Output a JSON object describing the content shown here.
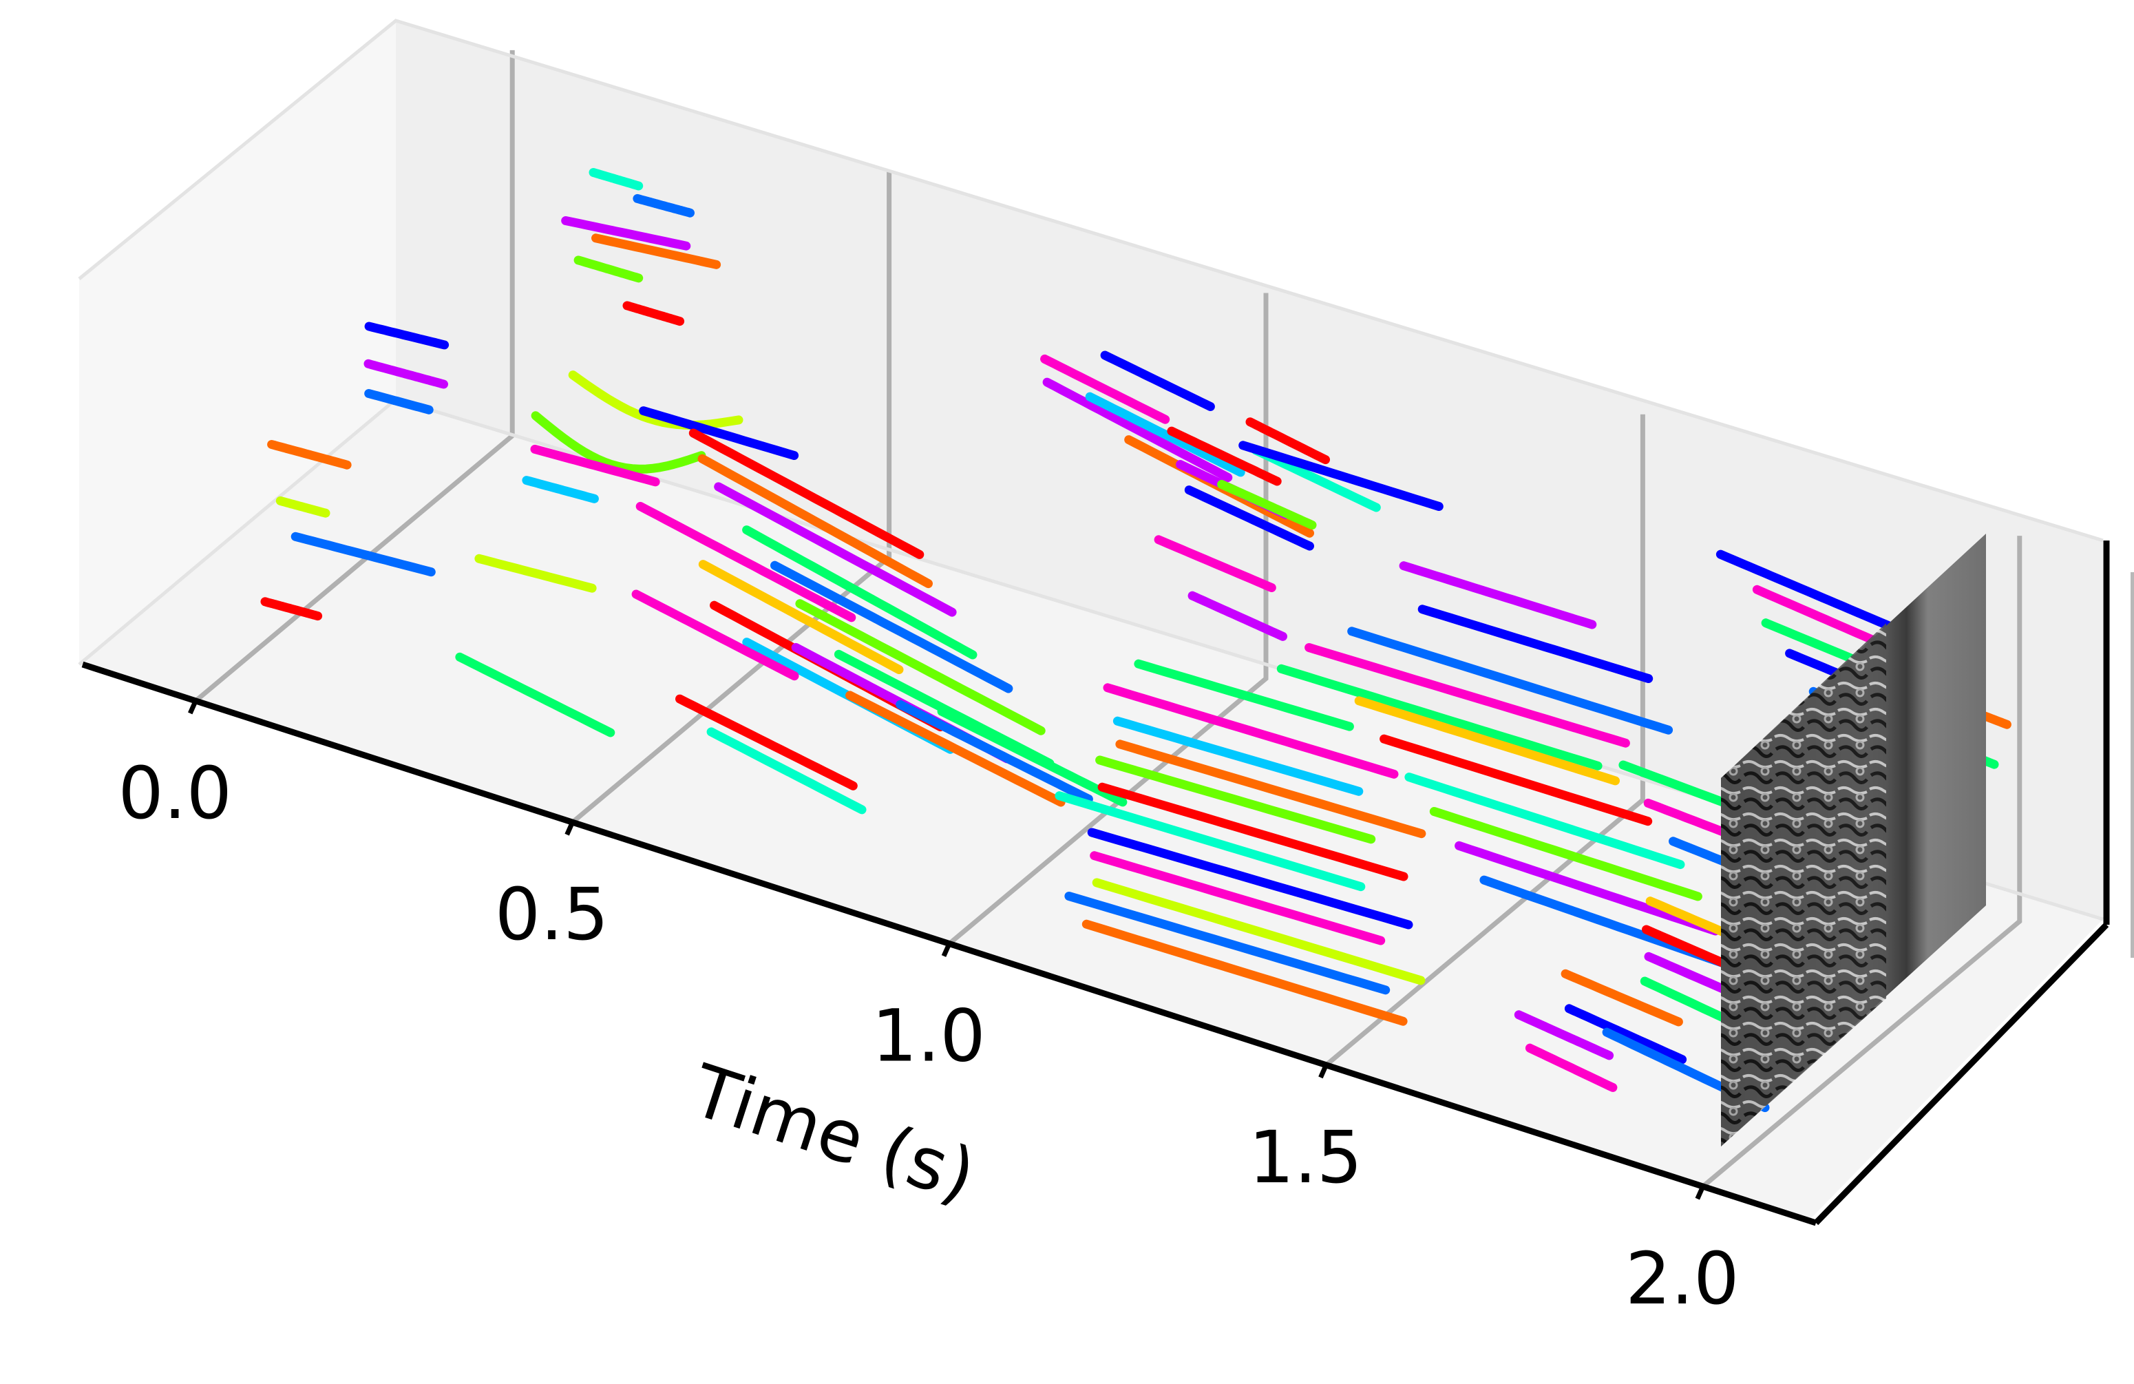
{
  "chart_data": {
    "type": "scatter",
    "projection": "3d",
    "xlabel": "Time (s)",
    "x_ticks": [
      {
        "value": 0.0,
        "label": "0.0"
      },
      {
        "value": 0.5,
        "label": "0.5"
      },
      {
        "value": 1.0,
        "label": "1.0"
      },
      {
        "value": 1.5,
        "label": "1.5"
      },
      {
        "value": 2.0,
        "label": "2.0"
      }
    ],
    "xlim": [
      -0.15,
      2.15
    ],
    "ylabel": "",
    "zlabel": "",
    "grid": true,
    "legend": "none",
    "final_frame": "grayscale intensity image shown at t = 2.0",
    "palette": [
      "#ff0000",
      "#ff6a00",
      "#ffc800",
      "#c8ff00",
      "#6aff00",
      "#00ff6a",
      "#00ffc8",
      "#00c8ff",
      "#006aff",
      "#0000ff",
      "#6a00ff",
      "#c800ff",
      "#ff00c8"
    ],
    "tracks": [
      {
        "t0": 0.2,
        "t1": 0.26,
        "y": 0.78,
        "z": 0.96,
        "slope": 0.05,
        "curve": 0.0,
        "color": "#00ffc8"
      },
      {
        "t0": 0.25,
        "t1": 0.32,
        "y": 0.8,
        "z": 0.91,
        "slope": 0.1,
        "curve": 0.0,
        "color": "#006aff"
      },
      {
        "t0": 0.18,
        "t1": 0.34,
        "y": 0.74,
        "z": 0.85,
        "slope": 0.22,
        "curve": 0.0,
        "color": "#c800ff"
      },
      {
        "t0": 0.22,
        "t1": 0.38,
        "y": 0.74,
        "z": 0.83,
        "slope": 0.2,
        "curve": 0.0,
        "color": "#ff6a00"
      },
      {
        "t0": 0.18,
        "t1": 0.26,
        "y": 0.78,
        "z": 0.72,
        "slope": 0.05,
        "curve": 0.0,
        "color": "#6aff00"
      },
      {
        "t0": 0.27,
        "t1": 0.34,
        "y": 0.72,
        "z": 0.7,
        "slope": 0.05,
        "curve": 0.0,
        "color": "#ff0000"
      },
      {
        "t0": 0.02,
        "t1": 0.12,
        "y": 0.5,
        "z": 0.64,
        "slope": 0.15,
        "curve": 0.0,
        "color": "#0000ff"
      },
      {
        "t0": 0.04,
        "t1": 0.14,
        "y": 0.45,
        "z": 0.59,
        "slope": 0.1,
        "curve": 0.0,
        "color": "#c800ff"
      },
      {
        "t0": 0.07,
        "t1": 0.15,
        "y": 0.38,
        "z": 0.58,
        "slope": 0.1,
        "curve": 0.0,
        "color": "#006aff"
      },
      {
        "t0": 0.0,
        "t1": 0.1,
        "y": 0.24,
        "z": 0.5,
        "slope": 0.1,
        "curve": 0.0,
        "color": "#ff6a00"
      },
      {
        "t0": 0.02,
        "t1": 0.08,
        "y": 0.22,
        "z": 0.38,
        "slope": 0.1,
        "curve": 0.0,
        "color": "#c8ff00"
      },
      {
        "t0": 0.04,
        "t1": 0.22,
        "y": 0.22,
        "z": 0.3,
        "slope": 0.12,
        "curve": 0.0,
        "color": "#006aff"
      },
      {
        "t0": 0.05,
        "t1": 0.12,
        "y": 0.1,
        "z": 0.22,
        "slope": 0.1,
        "curve": 0.0,
        "color": "#ff0000"
      },
      {
        "t0": 0.24,
        "t1": 0.46,
        "y": 0.62,
        "z": 0.57,
        "slope": 0.1,
        "curve": -0.06,
        "color": "#c8ff00"
      },
      {
        "t0": 0.22,
        "t1": 0.44,
        "y": 0.55,
        "z": 0.5,
        "slope": 0.16,
        "curve": -0.08,
        "color": "#6aff00"
      },
      {
        "t0": 0.24,
        "t1": 0.4,
        "y": 0.5,
        "z": 0.46,
        "slope": 0.1,
        "curve": 0.0,
        "color": "#ff00c8"
      },
      {
        "t0": 0.25,
        "t1": 0.34,
        "y": 0.45,
        "z": 0.42,
        "slope": 0.1,
        "curve": 0.0,
        "color": "#00c8ff"
      },
      {
        "t0": 0.3,
        "t1": 0.5,
        "y": 0.7,
        "z": 0.46,
        "slope": 0.05,
        "curve": 0.0,
        "color": "#0000ff"
      },
      {
        "t0": 0.25,
        "t1": 0.4,
        "y": 0.3,
        "z": 0.32,
        "slope": 0.12,
        "curve": 0.0,
        "color": "#c8ff00"
      },
      {
        "t0": 0.3,
        "t1": 0.5,
        "y": 0.12,
        "z": 0.22,
        "slope": -0.35,
        "curve": 0.0,
        "color": "#00ff6a"
      },
      {
        "t0": 0.4,
        "t1": 0.7,
        "y": 0.62,
        "z": 0.52,
        "slope": -0.42,
        "curve": 0.0,
        "color": "#ff0000"
      },
      {
        "t0": 0.42,
        "t1": 0.72,
        "y": 0.6,
        "z": 0.48,
        "slope": -0.45,
        "curve": 0.0,
        "color": "#ff6a00"
      },
      {
        "t0": 0.45,
        "t1": 0.76,
        "y": 0.58,
        "z": 0.44,
        "slope": -0.42,
        "curve": 0.0,
        "color": "#c800ff"
      },
      {
        "t0": 0.38,
        "t1": 0.66,
        "y": 0.5,
        "z": 0.4,
        "slope": -0.4,
        "curve": 0.0,
        "color": "#ff00c8"
      },
      {
        "t0": 0.5,
        "t1": 0.8,
        "y": 0.55,
        "z": 0.38,
        "slope": -0.45,
        "curve": 0.0,
        "color": "#00ff6a"
      },
      {
        "t0": 0.48,
        "t1": 0.74,
        "y": 0.46,
        "z": 0.34,
        "slope": -0.42,
        "curve": 0.0,
        "color": "#ffc800"
      },
      {
        "t0": 0.55,
        "t1": 0.86,
        "y": 0.52,
        "z": 0.34,
        "slope": -0.4,
        "curve": 0.0,
        "color": "#006aff"
      },
      {
        "t0": 0.52,
        "t1": 0.82,
        "y": 0.4,
        "z": 0.3,
        "slope": -0.42,
        "curve": 0.0,
        "color": "#ff0000"
      },
      {
        "t0": 0.6,
        "t1": 0.92,
        "y": 0.48,
        "z": 0.3,
        "slope": -0.4,
        "curve": 0.0,
        "color": "#6aff00"
      },
      {
        "t0": 0.58,
        "t1": 0.85,
        "y": 0.36,
        "z": 0.27,
        "slope": -0.4,
        "curve": 0.0,
        "color": "#00c8ff"
      },
      {
        "t0": 0.45,
        "t1": 0.66,
        "y": 0.32,
        "z": 0.34,
        "slope": -0.38,
        "curve": 0.0,
        "color": "#ff00c8"
      },
      {
        "t0": 0.62,
        "t1": 0.9,
        "y": 0.42,
        "z": 0.24,
        "slope": -0.4,
        "curve": 0.0,
        "color": "#c800ff"
      },
      {
        "t0": 0.66,
        "t1": 0.94,
        "y": 0.46,
        "z": 0.22,
        "slope": -0.38,
        "curve": 0.0,
        "color": "#00ff6a"
      },
      {
        "t0": 0.7,
        "t1": 0.98,
        "y": 0.4,
        "z": 0.18,
        "slope": -0.36,
        "curve": 0.0,
        "color": "#ff6a00"
      },
      {
        "t0": 0.55,
        "t1": 0.78,
        "y": 0.22,
        "z": 0.2,
        "slope": -0.35,
        "curve": 0.0,
        "color": "#ff0000"
      },
      {
        "t0": 0.6,
        "t1": 0.8,
        "y": 0.2,
        "z": 0.16,
        "slope": -0.38,
        "curve": 0.0,
        "color": "#00ffc8"
      },
      {
        "t0": 0.75,
        "t1": 1.0,
        "y": 0.44,
        "z": 0.16,
        "slope": -0.35,
        "curve": 0.0,
        "color": "#006aff"
      },
      {
        "t0": 0.78,
        "t1": 1.02,
        "y": 0.5,
        "z": 0.12,
        "slope": -0.35,
        "curve": 0.0,
        "color": "#00ff6a"
      },
      {
        "t0": 0.74,
        "t1": 0.9,
        "y": 0.92,
        "z": 0.72,
        "slope": -0.35,
        "curve": 0.0,
        "color": "#ff00c8"
      },
      {
        "t0": 0.76,
        "t1": 1.0,
        "y": 0.88,
        "z": 0.7,
        "slope": -0.4,
        "curve": 0.0,
        "color": "#c800ff"
      },
      {
        "t0": 0.82,
        "t1": 0.96,
        "y": 0.92,
        "z": 0.78,
        "slope": -0.32,
        "curve": 0.0,
        "color": "#0000ff"
      },
      {
        "t0": 0.8,
        "t1": 1.0,
        "y": 0.92,
        "z": 0.66,
        "slope": -0.35,
        "curve": 0.0,
        "color": "#00c8ff"
      },
      {
        "t0": 0.86,
        "t1": 1.1,
        "y": 0.9,
        "z": 0.6,
        "slope": -0.38,
        "curve": 0.0,
        "color": "#ff6a00"
      },
      {
        "t0": 0.9,
        "t1": 1.04,
        "y": 0.94,
        "z": 0.62,
        "slope": -0.3,
        "curve": 0.0,
        "color": "#ff0000"
      },
      {
        "t0": 0.92,
        "t1": 1.06,
        "y": 0.92,
        "z": 0.56,
        "slope": -0.3,
        "curve": 0.0,
        "color": "#c800ff"
      },
      {
        "t0": 0.94,
        "t1": 1.1,
        "y": 0.9,
        "z": 0.52,
        "slope": -0.28,
        "curve": 0.0,
        "color": "#0000ff"
      },
      {
        "t0": 1.0,
        "t1": 1.1,
        "y": 0.95,
        "z": 0.7,
        "slope": -0.35,
        "curve": 0.0,
        "color": "#ff0000"
      },
      {
        "t0": 1.02,
        "t1": 1.18,
        "y": 0.92,
        "z": 0.66,
        "slope": -0.3,
        "curve": 0.0,
        "color": "#00ffc8"
      },
      {
        "t0": 1.0,
        "t1": 1.12,
        "y": 0.86,
        "z": 0.6,
        "slope": -0.25,
        "curve": 0.0,
        "color": "#6aff00"
      },
      {
        "t0": 0.95,
        "t1": 1.1,
        "y": 0.78,
        "z": 0.48,
        "slope": -0.2,
        "curve": 0.0,
        "color": "#ff00c8"
      },
      {
        "t0": 1.02,
        "t1": 1.14,
        "y": 0.72,
        "z": 0.42,
        "slope": -0.25,
        "curve": 0.0,
        "color": "#c800ff"
      },
      {
        "t0": 1.02,
        "t1": 1.3,
        "y": 0.55,
        "z": 0.36,
        "slope": 0.05,
        "curve": 0.0,
        "color": "#00ff6a"
      },
      {
        "t0": 1.0,
        "t1": 1.38,
        "y": 0.5,
        "z": 0.32,
        "slope": 0.04,
        "curve": 0.0,
        "color": "#ff00c8"
      },
      {
        "t0": 1.03,
        "t1": 1.35,
        "y": 0.46,
        "z": 0.28,
        "slope": 0.06,
        "curve": 0.0,
        "color": "#00c8ff"
      },
      {
        "t0": 1.05,
        "t1": 1.45,
        "y": 0.42,
        "z": 0.26,
        "slope": 0.05,
        "curve": 0.0,
        "color": "#ff6a00"
      },
      {
        "t0": 1.04,
        "t1": 1.4,
        "y": 0.38,
        "z": 0.24,
        "slope": 0.06,
        "curve": 0.0,
        "color": "#6aff00"
      },
      {
        "t0": 1.06,
        "t1": 1.46,
        "y": 0.34,
        "z": 0.21,
        "slope": 0.05,
        "curve": 0.0,
        "color": "#ff0000"
      },
      {
        "t0": 1.02,
        "t1": 1.42,
        "y": 0.3,
        "z": 0.19,
        "slope": 0.04,
        "curve": 0.0,
        "color": "#00ffc8"
      },
      {
        "t0": 1.08,
        "t1": 1.5,
        "y": 0.26,
        "z": 0.16,
        "slope": 0.06,
        "curve": 0.0,
        "color": "#0000ff"
      },
      {
        "t0": 1.1,
        "t1": 1.48,
        "y": 0.22,
        "z": 0.14,
        "slope": 0.05,
        "curve": 0.0,
        "color": "#ff00c8"
      },
      {
        "t0": 1.12,
        "t1": 1.55,
        "y": 0.18,
        "z": 0.11,
        "slope": 0.04,
        "curve": 0.0,
        "color": "#c8ff00"
      },
      {
        "t0": 1.1,
        "t1": 1.52,
        "y": 0.14,
        "z": 0.09,
        "slope": 0.05,
        "curve": 0.0,
        "color": "#006aff"
      },
      {
        "t0": 1.14,
        "t1": 1.56,
        "y": 0.1,
        "z": 0.07,
        "slope": 0.03,
        "curve": 0.0,
        "color": "#ff6a00"
      },
      {
        "t0": 1.18,
        "t1": 1.6,
        "y": 0.62,
        "z": 0.4,
        "slope": 0.03,
        "curve": 0.0,
        "color": "#00ff6a"
      },
      {
        "t0": 1.2,
        "t1": 1.62,
        "y": 0.66,
        "z": 0.44,
        "slope": 0.04,
        "curve": 0.0,
        "color": "#ff00c8"
      },
      {
        "t0": 1.24,
        "t1": 1.66,
        "y": 0.7,
        "z": 0.48,
        "slope": 0.02,
        "curve": 0.0,
        "color": "#006aff"
      },
      {
        "t0": 1.3,
        "t1": 1.64,
        "y": 0.58,
        "z": 0.42,
        "slope": 0.02,
        "curve": 0.0,
        "color": "#ffc800"
      },
      {
        "t0": 1.35,
        "t1": 1.7,
        "y": 0.54,
        "z": 0.38,
        "slope": 0.02,
        "curve": 0.0,
        "color": "#ff0000"
      },
      {
        "t0": 1.4,
        "t1": 1.76,
        "y": 0.5,
        "z": 0.34,
        "slope": 0.0,
        "curve": 0.0,
        "color": "#00ffc8"
      },
      {
        "t0": 1.45,
        "t1": 1.8,
        "y": 0.46,
        "z": 0.31,
        "slope": 0.0,
        "curve": 0.0,
        "color": "#6aff00"
      },
      {
        "t0": 1.5,
        "t1": 1.84,
        "y": 0.42,
        "z": 0.28,
        "slope": -0.02,
        "curve": 0.0,
        "color": "#c800ff"
      },
      {
        "t0": 1.55,
        "t1": 1.88,
        "y": 0.38,
        "z": 0.25,
        "slope": -0.05,
        "curve": 0.0,
        "color": "#006aff"
      },
      {
        "t0": 1.3,
        "t1": 1.6,
        "y": 0.78,
        "z": 0.52,
        "slope": 0.03,
        "curve": 0.0,
        "color": "#0000ff"
      },
      {
        "t0": 1.25,
        "t1": 1.5,
        "y": 0.84,
        "z": 0.56,
        "slope": 0.02,
        "curve": 0.0,
        "color": "#c800ff"
      },
      {
        "t0": 1.02,
        "t1": 1.28,
        "y": 0.88,
        "z": 0.7,
        "slope": 0.02,
        "curve": 0.0,
        "color": "#0000ff"
      },
      {
        "t0": 1.6,
        "t1": 1.9,
        "y": 0.7,
        "z": 0.36,
        "slope": -0.1,
        "curve": 0.0,
        "color": "#00ff6a"
      },
      {
        "t0": 1.65,
        "t1": 1.95,
        "y": 0.66,
        "z": 0.32,
        "slope": -0.12,
        "curve": 0.0,
        "color": "#ff00c8"
      },
      {
        "t0": 1.7,
        "t1": 1.96,
        "y": 0.62,
        "z": 0.28,
        "slope": -0.15,
        "curve": 0.0,
        "color": "#006aff"
      },
      {
        "t0": 1.72,
        "t1": 1.92,
        "y": 0.5,
        "z": 0.22,
        "slope": -0.2,
        "curve": 0.0,
        "color": "#ffc800"
      },
      {
        "t0": 1.74,
        "t1": 1.96,
        "y": 0.44,
        "z": 0.2,
        "slope": -0.22,
        "curve": 0.0,
        "color": "#ff0000"
      },
      {
        "t0": 1.76,
        "t1": 1.98,
        "y": 0.4,
        "z": 0.17,
        "slope": -0.22,
        "curve": 0.0,
        "color": "#c800ff"
      },
      {
        "t0": 1.78,
        "t1": 1.99,
        "y": 0.34,
        "z": 0.16,
        "slope": -0.28,
        "curve": 0.0,
        "color": "#00ff6a"
      },
      {
        "t0": 1.7,
        "t1": 1.85,
        "y": 0.28,
        "z": 0.17,
        "slope": -0.2,
        "curve": 0.0,
        "color": "#ff6a00"
      },
      {
        "t0": 1.73,
        "t1": 1.88,
        "y": 0.22,
        "z": 0.14,
        "slope": -0.25,
        "curve": 0.0,
        "color": "#0000ff"
      },
      {
        "t0": 1.68,
        "t1": 1.8,
        "y": 0.18,
        "z": 0.12,
        "slope": -0.25,
        "curve": 0.0,
        "color": "#c800ff"
      },
      {
        "t0": 1.78,
        "t1": 1.99,
        "y": 0.22,
        "z": 0.11,
        "slope": -0.3,
        "curve": 0.0,
        "color": "#006aff"
      },
      {
        "t0": 1.72,
        "t1": 1.83,
        "y": 0.12,
        "z": 0.1,
        "slope": -0.3,
        "curve": 0.0,
        "color": "#ff00c8"
      },
      {
        "t0": 1.8,
        "t1": 2.0,
        "y": 0.8,
        "z": 0.36,
        "slope": -0.2,
        "curve": 0.0,
        "color": "#0000ff"
      },
      {
        "t0": 1.84,
        "t1": 2.0,
        "y": 0.86,
        "z": 0.42,
        "slope": -0.18,
        "curve": 0.0,
        "color": "#ff00c8"
      },
      {
        "t0": 1.88,
        "t1": 2.0,
        "y": 0.92,
        "z": 0.48,
        "slope": -0.15,
        "curve": 0.0,
        "color": "#00ff6a"
      },
      {
        "t0": 1.9,
        "t1": 2.0,
        "y": 0.96,
        "z": 0.55,
        "slope": -0.12,
        "curve": 0.0,
        "color": "#ff6a00"
      },
      {
        "t0": 1.62,
        "t1": 1.85,
        "y": 0.96,
        "z": 0.74,
        "slope": -0.2,
        "curve": 0.0,
        "color": "#0000ff"
      },
      {
        "t0": 1.66,
        "t1": 1.86,
        "y": 0.98,
        "z": 0.66,
        "slope": -0.22,
        "curve": 0.0,
        "color": "#ff00c8"
      },
      {
        "t0": 1.68,
        "t1": 1.86,
        "y": 0.96,
        "z": 0.6,
        "slope": -0.18,
        "curve": 0.0,
        "color": "#00ff6a"
      },
      {
        "t0": 1.72,
        "t1": 1.9,
        "y": 0.94,
        "z": 0.56,
        "slope": -0.18,
        "curve": 0.0,
        "color": "#0000ff"
      },
      {
        "t0": 1.76,
        "t1": 1.94,
        "y": 0.92,
        "z": 0.5,
        "slope": -0.2,
        "curve": 0.0,
        "color": "#006aff"
      }
    ]
  }
}
